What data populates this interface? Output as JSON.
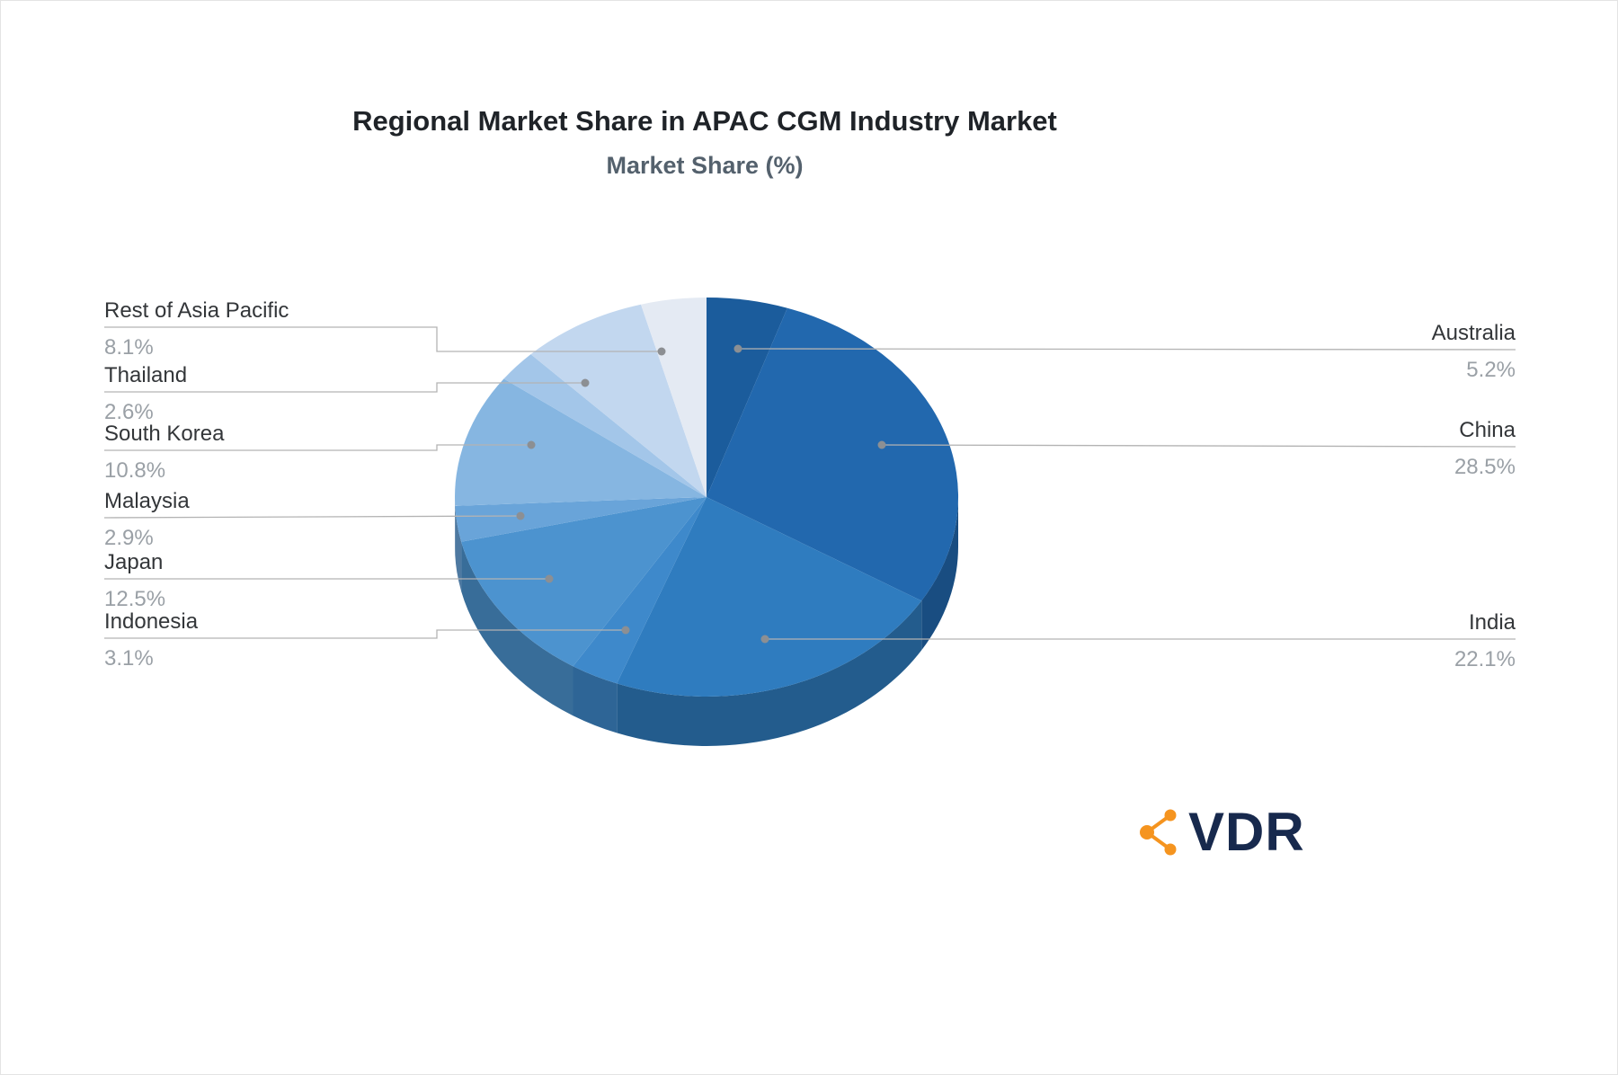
{
  "title": "Regional Market Share in APAC CGM Industry Market",
  "subtitle": "Market Share (%)",
  "logo": {
    "text": "VDR",
    "icon": "network-nodes-icon",
    "icon_color": "#F5941F",
    "text_color": "#17294D"
  },
  "chart_data": {
    "type": "pie",
    "title": "Regional Market Share in APAC CGM Industry Market",
    "subtitle": "Market Share (%)",
    "unit": "%",
    "start_angle": "top",
    "direction": "clockwise",
    "legend_position": "none",
    "slices": [
      {
        "label": "Australia",
        "value": 5.2,
        "color": "#1B5C9C",
        "side": "right"
      },
      {
        "label": "China",
        "value": 28.5,
        "color": "#2268AE",
        "side": "right"
      },
      {
        "label": "India",
        "value": 22.1,
        "color": "#2F7CBF",
        "side": "right"
      },
      {
        "label": "Indonesia",
        "value": 3.1,
        "color": "#3E89CB",
        "side": "left"
      },
      {
        "label": "Japan",
        "value": 12.5,
        "color": "#4C93CF",
        "side": "left"
      },
      {
        "label": "Malaysia",
        "value": 2.9,
        "color": "#69A4D9",
        "side": "left"
      },
      {
        "label": "South Korea",
        "value": 10.8,
        "color": "#86B6E1",
        "side": "left"
      },
      {
        "label": "Thailand",
        "value": 2.6,
        "color": "#A3C6E9",
        "side": "left"
      },
      {
        "label": "Rest of Asia Pacific",
        "value": 8.1,
        "color": "#C2D7EF",
        "side": "left"
      },
      {
        "label": "",
        "value": 4.2,
        "color": "#E4EAF3",
        "side": "none"
      }
    ]
  }
}
